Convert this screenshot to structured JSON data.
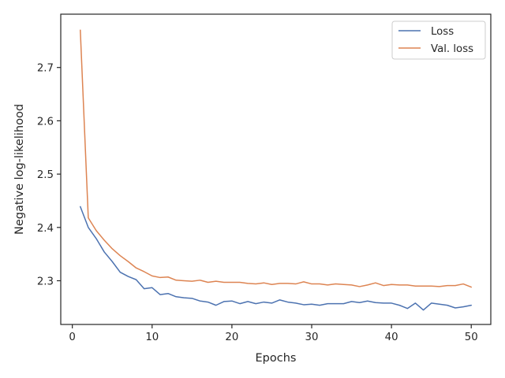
{
  "chart_data": {
    "type": "line",
    "title": "",
    "xlabel": "Epochs",
    "ylabel": "Negative log-likelihood",
    "xlim": [
      -1.45,
      52.45
    ],
    "ylim": [
      2.218,
      2.8
    ],
    "xticks": [
      0,
      10,
      20,
      30,
      40,
      50
    ],
    "yticks": [
      2.3,
      2.4,
      2.5,
      2.6,
      2.7
    ],
    "ytick_labels": [
      "2.3",
      "2.4",
      "2.5",
      "2.6",
      "2.7"
    ],
    "xtick_labels": [
      "0",
      "10",
      "20",
      "30",
      "40",
      "50"
    ],
    "grid": false,
    "legend_position": "top-right",
    "x": [
      1,
      2,
      3,
      4,
      5,
      6,
      7,
      8,
      9,
      10,
      11,
      12,
      13,
      14,
      15,
      16,
      17,
      18,
      19,
      20,
      21,
      22,
      23,
      24,
      25,
      26,
      27,
      28,
      29,
      30,
      31,
      32,
      33,
      34,
      35,
      36,
      37,
      38,
      39,
      40,
      41,
      42,
      43,
      44,
      45,
      46,
      47,
      48,
      49,
      50
    ],
    "series": [
      {
        "name": "Loss",
        "color": "#4c72b0",
        "values": [
          2.439,
          2.4,
          2.379,
          2.354,
          2.336,
          2.316,
          2.308,
          2.302,
          2.285,
          2.287,
          2.274,
          2.276,
          2.27,
          2.268,
          2.267,
          2.262,
          2.26,
          2.254,
          2.261,
          2.262,
          2.257,
          2.261,
          2.257,
          2.26,
          2.258,
          2.264,
          2.26,
          2.258,
          2.255,
          2.256,
          2.254,
          2.257,
          2.257,
          2.257,
          2.261,
          2.259,
          2.262,
          2.259,
          2.258,
          2.258,
          2.254,
          2.248,
          2.258,
          2.245,
          2.258,
          2.256,
          2.254,
          2.249,
          2.251,
          2.254
        ]
      },
      {
        "name": "Val. loss",
        "color": "#dd8452",
        "values": [
          2.77,
          2.418,
          2.394,
          2.376,
          2.36,
          2.347,
          2.336,
          2.324,
          2.317,
          2.309,
          2.306,
          2.307,
          2.301,
          2.3,
          2.299,
          2.301,
          2.297,
          2.299,
          2.297,
          2.297,
          2.297,
          2.295,
          2.294,
          2.296,
          2.293,
          2.295,
          2.295,
          2.294,
          2.298,
          2.294,
          2.294,
          2.292,
          2.294,
          2.293,
          2.292,
          2.289,
          2.292,
          2.296,
          2.291,
          2.293,
          2.292,
          2.292,
          2.29,
          2.29,
          2.29,
          2.289,
          2.291,
          2.291,
          2.294,
          2.288
        ]
      }
    ]
  }
}
